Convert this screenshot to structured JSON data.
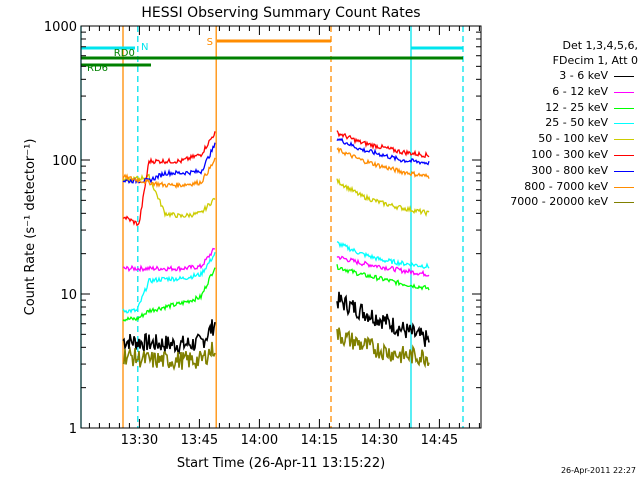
{
  "chart_data": {
    "type": "line",
    "title": "HESSI Observing Summary Count Rates",
    "xlabel": "Start Time (26-Apr-11 13:15:22)",
    "ylabel": "Count Rate (s⁻¹ detector⁻¹)",
    "x_units": "minutes since 13:15:22",
    "xlim": [
      0,
      100
    ],
    "ylim": [
      1,
      1000
    ],
    "yscale": "log",
    "xticks": [
      {
        "label": "13:30",
        "value": 14.6
      },
      {
        "label": "13:45",
        "value": 29.6
      },
      {
        "label": "14:00",
        "value": 44.6
      },
      {
        "label": "14:15",
        "value": 59.6
      },
      {
        "label": "14:30",
        "value": 74.6
      },
      {
        "label": "14:45",
        "value": 89.6
      }
    ],
    "yticks": [
      {
        "label": "1",
        "value": 1
      },
      {
        "label": "10",
        "value": 10
      },
      {
        "label": "100",
        "value": 100
      },
      {
        "label": "1000",
        "value": 1000
      }
    ],
    "flag_bars": [
      {
        "label": "N",
        "color": "#00e5ee",
        "row": 1,
        "segments": [
          [
            0,
            13.5
          ],
          [
            82.5,
            95.5
          ]
        ]
      },
      {
        "label": "S",
        "color": "#ff8c00",
        "row": 0,
        "segments": [
          [
            34,
            62.5
          ]
        ]
      },
      {
        "label": "RD0",
        "color": "#008000",
        "row": 2,
        "segments": [
          [
            0,
            95.5
          ]
        ]
      },
      {
        "label": "RD6",
        "color": "#008000",
        "row": 3,
        "segments": [
          [
            0,
            17.5
          ]
        ]
      }
    ],
    "vlines": [
      {
        "x": 0,
        "color": "#00e5ee",
        "style": "solid"
      },
      {
        "x": 10.5,
        "color": "#ff8c00",
        "style": "solid"
      },
      {
        "x": 14.2,
        "color": "#00e5ee",
        "style": "dashed"
      },
      {
        "x": 33.8,
        "color": "#ff8c00",
        "style": "solid"
      },
      {
        "x": 62.5,
        "color": "#ff8c00",
        "style": "dashed"
      },
      {
        "x": 82.5,
        "color": "#00e5ee",
        "style": "solid"
      },
      {
        "x": 95.5,
        "color": "#00e5ee",
        "style": "dashed"
      }
    ],
    "series": [
      {
        "name": "3 - 6 keV",
        "color": "#000000",
        "segments": [
          {
            "x": [
              10.5,
              17,
              25,
              30,
              33.5
            ],
            "y": [
              4.5,
              4.3,
              4.2,
              4.3,
              6
            ]
          },
          {
            "x": [
              64,
              70,
              75,
              80,
              87
            ],
            "y": [
              9,
              7.5,
              6.5,
              5.5,
              4.5
            ]
          }
        ]
      },
      {
        "name": "6 - 12 keV",
        "color": "#ff00ff",
        "segments": [
          {
            "x": [
              10.5,
              17,
              25,
              30,
              33.5
            ],
            "y": [
              15.5,
              15.5,
              15.5,
              16,
              22
            ]
          },
          {
            "x": [
              64,
              70,
              75,
              80,
              87
            ],
            "y": [
              19,
              17,
              16,
              15,
              14
            ]
          }
        ]
      },
      {
        "name": "12 - 25 keV",
        "color": "#00ff00",
        "segments": [
          {
            "x": [
              10.5,
              14,
              17,
              21,
              25,
              30,
              33.5
            ],
            "y": [
              6.5,
              6.5,
              7.5,
              8,
              8.5,
              9.5,
              16
            ]
          },
          {
            "x": [
              64,
              70,
              75,
              80,
              87
            ],
            "y": [
              16,
              14,
              13,
              12,
              11
            ]
          }
        ]
      },
      {
        "name": "25 - 50 keV",
        "color": "#00ffff",
        "segments": [
          {
            "x": [
              10.5,
              14,
              17,
              21,
              25,
              30,
              33.5
            ],
            "y": [
              7.5,
              7.5,
              12.5,
              13,
              13,
              14,
              20
            ]
          },
          {
            "x": [
              64,
              70,
              75,
              80,
              87
            ],
            "y": [
              24,
              20,
              18,
              17,
              16
            ]
          }
        ]
      },
      {
        "name": "50 - 100 keV",
        "color": "#cccc00",
        "segments": [
          {
            "x": [
              10.5,
              17,
              21,
              25,
              30,
              33.5
            ],
            "y": [
              70,
              75,
              40,
              38,
              40,
              52
            ]
          },
          {
            "x": [
              64,
              70,
              75,
              80,
              87
            ],
            "y": [
              70,
              54,
              48,
              44,
              40
            ]
          }
        ]
      },
      {
        "name": "100 - 300 keV",
        "color": "#ff0000",
        "segments": [
          {
            "x": [
              10.5,
              14.5,
              17,
              21,
              25,
              30,
              33.5
            ],
            "y": [
              38,
              33,
              98,
              98,
              98,
              110,
              160
            ]
          },
          {
            "x": [
              64,
              70,
              75,
              80,
              87
            ],
            "y": [
              160,
              135,
              125,
              115,
              108
            ]
          }
        ]
      },
      {
        "name": "300 - 800 keV",
        "color": "#0000ff",
        "segments": [
          {
            "x": [
              10.5,
              17,
              21,
              25,
              30,
              33.5
            ],
            "y": [
              70,
              70,
              80,
              80,
              82,
              130
            ]
          },
          {
            "x": [
              64,
              70,
              75,
              80,
              87
            ],
            "y": [
              145,
              120,
              110,
              100,
              95
            ]
          }
        ]
      },
      {
        "name": "800 - 7000 keV",
        "color": "#ff8c00",
        "segments": [
          {
            "x": [
              10.5,
              17,
              21,
              25,
              30,
              33.5
            ],
            "y": [
              75,
              68,
              65,
              65,
              68,
              100
            ]
          },
          {
            "x": [
              64,
              70,
              75,
              80,
              87
            ],
            "y": [
              120,
              100,
              90,
              82,
              75
            ]
          }
        ]
      },
      {
        "name": "7000 - 20000 keV",
        "color": "#808000",
        "segments": [
          {
            "x": [
              10.5,
              17,
              25,
              30,
              33.5
            ],
            "y": [
              3.5,
              3.2,
              3.2,
              3.2,
              4
            ]
          },
          {
            "x": [
              64,
              70,
              75,
              80,
              87
            ],
            "y": [
              5,
              4.2,
              3.8,
              3.5,
              3.4
            ]
          }
        ]
      }
    ]
  },
  "legend": {
    "header_line1": "Det 1,3,4,5,6,",
    "header_line2": "FDecim 1, Att 0"
  },
  "timestamp": "26-Apr-2011 22:27"
}
